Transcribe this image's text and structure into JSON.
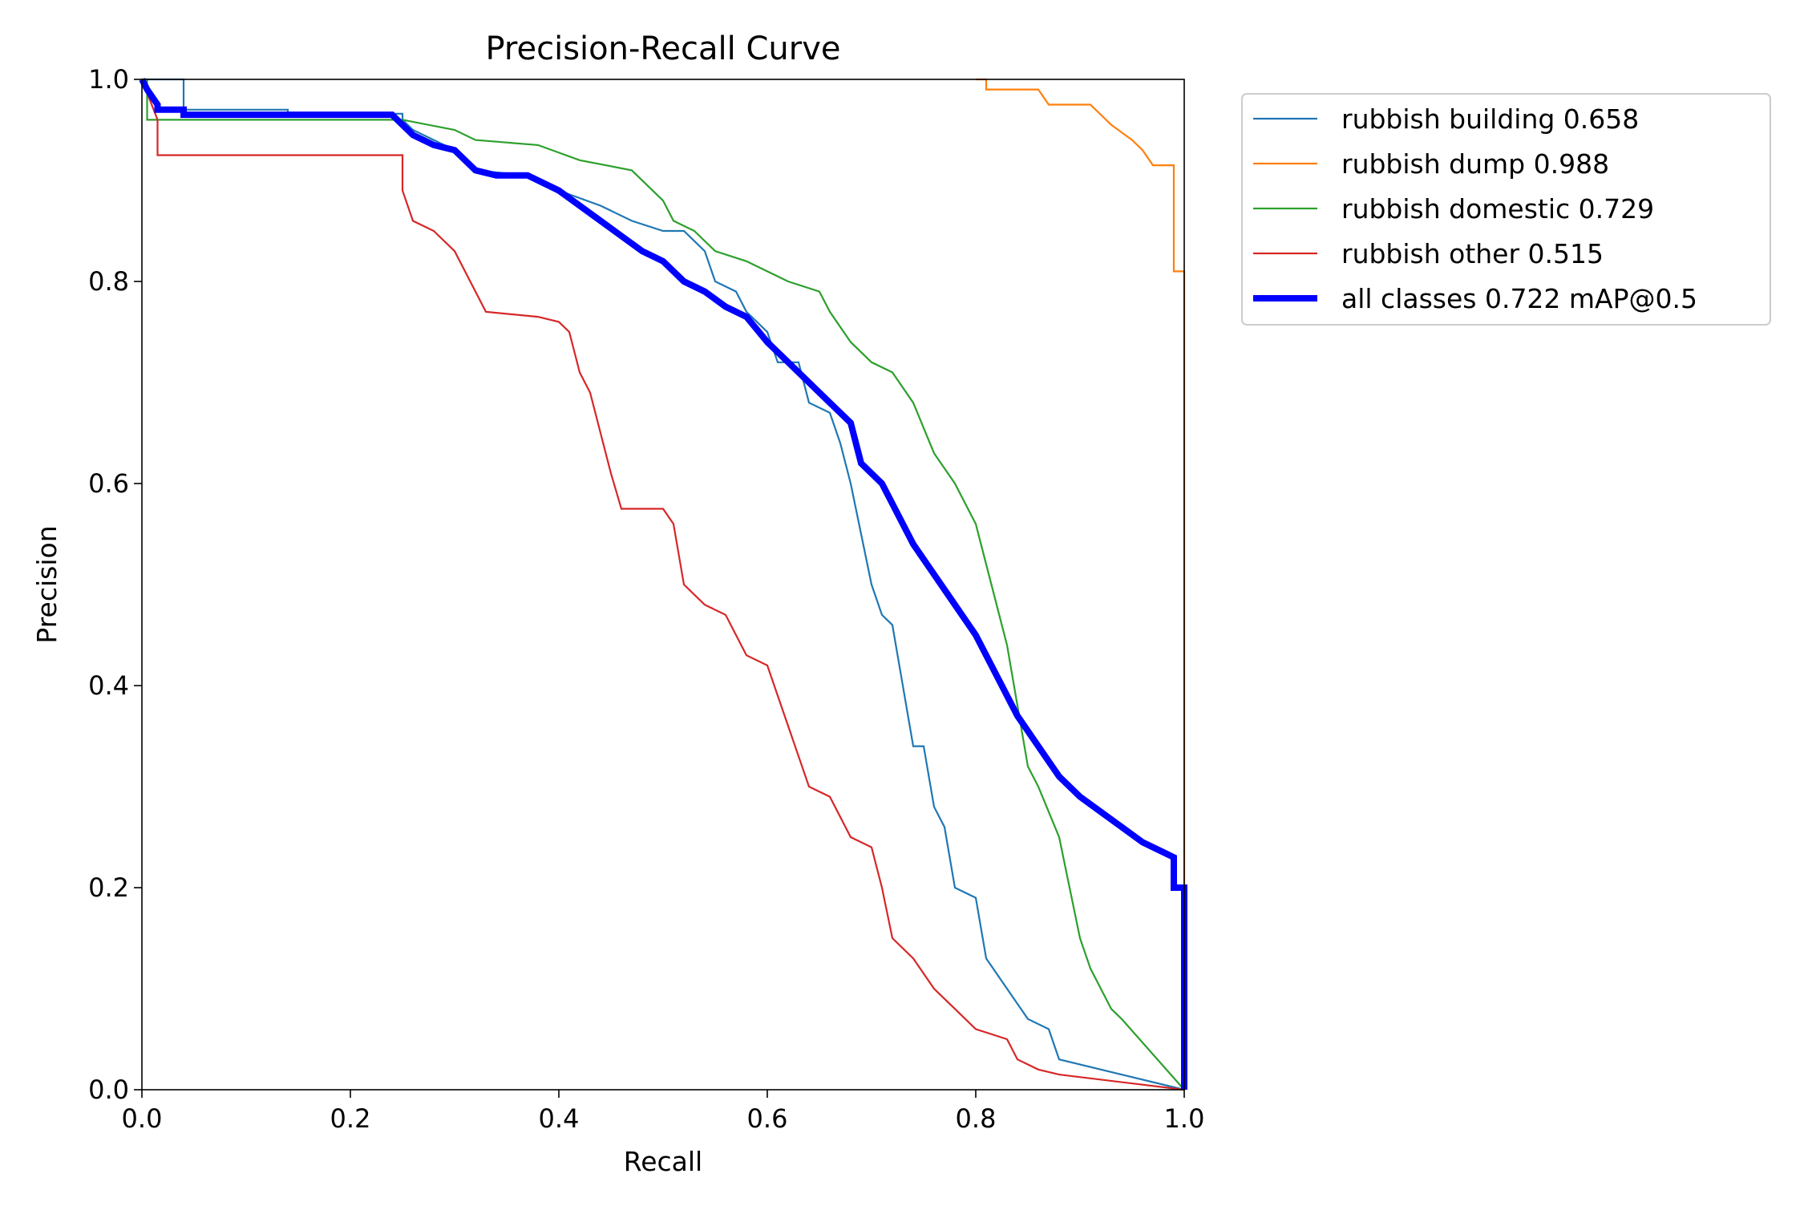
{
  "chart_data": {
    "type": "line",
    "title": "Precision-Recall Curve",
    "xlabel": "Recall",
    "ylabel": "Precision",
    "xlim": [
      0,
      1
    ],
    "ylim": [
      0,
      1
    ],
    "x_ticks": [
      "0.0",
      "0.2",
      "0.4",
      "0.6",
      "0.8",
      "1.0"
    ],
    "y_ticks": [
      "0.0",
      "0.2",
      "0.4",
      "0.6",
      "0.8",
      "1.0"
    ],
    "grid": false,
    "legend_position": "outside-top-right",
    "series": [
      {
        "name": "rubbish building 0.658",
        "color": "#1f77b4",
        "weight": "thin",
        "points": [
          [
            0.0,
            1.0
          ],
          [
            0.04,
            1.0
          ],
          [
            0.04,
            0.97
          ],
          [
            0.14,
            0.97
          ],
          [
            0.14,
            0.966
          ],
          [
            0.25,
            0.966
          ],
          [
            0.25,
            0.96
          ],
          [
            0.26,
            0.95
          ],
          [
            0.3,
            0.93
          ],
          [
            0.32,
            0.91
          ],
          [
            0.37,
            0.905
          ],
          [
            0.4,
            0.89
          ],
          [
            0.44,
            0.875
          ],
          [
            0.47,
            0.86
          ],
          [
            0.5,
            0.85
          ],
          [
            0.52,
            0.85
          ],
          [
            0.54,
            0.83
          ],
          [
            0.55,
            0.8
          ],
          [
            0.57,
            0.79
          ],
          [
            0.58,
            0.77
          ],
          [
            0.6,
            0.75
          ],
          [
            0.61,
            0.72
          ],
          [
            0.63,
            0.72
          ],
          [
            0.64,
            0.68
          ],
          [
            0.66,
            0.67
          ],
          [
            0.67,
            0.64
          ],
          [
            0.68,
            0.6
          ],
          [
            0.69,
            0.55
          ],
          [
            0.7,
            0.5
          ],
          [
            0.71,
            0.47
          ],
          [
            0.72,
            0.46
          ],
          [
            0.73,
            0.4
          ],
          [
            0.74,
            0.34
          ],
          [
            0.75,
            0.34
          ],
          [
            0.76,
            0.28
          ],
          [
            0.77,
            0.26
          ],
          [
            0.78,
            0.2
          ],
          [
            0.8,
            0.19
          ],
          [
            0.81,
            0.13
          ],
          [
            0.83,
            0.1
          ],
          [
            0.85,
            0.07
          ],
          [
            0.87,
            0.06
          ],
          [
            0.88,
            0.03
          ],
          [
            1.0,
            0.0
          ]
        ]
      },
      {
        "name": "rubbish dump 0.988",
        "color": "#ff7f0e",
        "weight": "thin",
        "points": [
          [
            0.8,
            1.0
          ],
          [
            0.81,
            1.0
          ],
          [
            0.81,
            0.99
          ],
          [
            0.86,
            0.99
          ],
          [
            0.87,
            0.975
          ],
          [
            0.91,
            0.975
          ],
          [
            0.93,
            0.955
          ],
          [
            0.95,
            0.94
          ],
          [
            0.96,
            0.93
          ],
          [
            0.97,
            0.915
          ],
          [
            0.99,
            0.915
          ],
          [
            0.99,
            0.81
          ],
          [
            1.0,
            0.81
          ],
          [
            1.0,
            0.0
          ]
        ]
      },
      {
        "name": "rubbish domestic 0.729",
        "color": "#2ca02c",
        "weight": "thin",
        "points": [
          [
            0.0,
            1.0
          ],
          [
            0.005,
            1.0
          ],
          [
            0.005,
            0.96
          ],
          [
            0.25,
            0.96
          ],
          [
            0.3,
            0.95
          ],
          [
            0.32,
            0.94
          ],
          [
            0.38,
            0.935
          ],
          [
            0.42,
            0.92
          ],
          [
            0.47,
            0.91
          ],
          [
            0.5,
            0.88
          ],
          [
            0.51,
            0.86
          ],
          [
            0.53,
            0.85
          ],
          [
            0.55,
            0.83
          ],
          [
            0.58,
            0.82
          ],
          [
            0.6,
            0.81
          ],
          [
            0.62,
            0.8
          ],
          [
            0.65,
            0.79
          ],
          [
            0.66,
            0.77
          ],
          [
            0.68,
            0.74
          ],
          [
            0.7,
            0.72
          ],
          [
            0.72,
            0.71
          ],
          [
            0.74,
            0.68
          ],
          [
            0.76,
            0.63
          ],
          [
            0.78,
            0.6
          ],
          [
            0.8,
            0.56
          ],
          [
            0.81,
            0.52
          ],
          [
            0.82,
            0.48
          ],
          [
            0.83,
            0.44
          ],
          [
            0.84,
            0.38
          ],
          [
            0.85,
            0.32
          ],
          [
            0.86,
            0.3
          ],
          [
            0.88,
            0.25
          ],
          [
            0.89,
            0.2
          ],
          [
            0.9,
            0.15
          ],
          [
            0.91,
            0.12
          ],
          [
            0.93,
            0.08
          ],
          [
            0.94,
            0.07
          ],
          [
            1.0,
            0.0
          ]
        ]
      },
      {
        "name": "rubbish other 0.515",
        "color": "#d62728",
        "weight": "thin",
        "points": [
          [
            0.0,
            1.0
          ],
          [
            0.015,
            0.96
          ],
          [
            0.015,
            0.925
          ],
          [
            0.25,
            0.925
          ],
          [
            0.25,
            0.89
          ],
          [
            0.26,
            0.86
          ],
          [
            0.28,
            0.85
          ],
          [
            0.3,
            0.83
          ],
          [
            0.31,
            0.81
          ],
          [
            0.32,
            0.79
          ],
          [
            0.33,
            0.77
          ],
          [
            0.38,
            0.765
          ],
          [
            0.4,
            0.76
          ],
          [
            0.41,
            0.75
          ],
          [
            0.42,
            0.71
          ],
          [
            0.43,
            0.69
          ],
          [
            0.44,
            0.65
          ],
          [
            0.45,
            0.61
          ],
          [
            0.46,
            0.575
          ],
          [
            0.5,
            0.575
          ],
          [
            0.51,
            0.56
          ],
          [
            0.52,
            0.5
          ],
          [
            0.54,
            0.48
          ],
          [
            0.56,
            0.47
          ],
          [
            0.57,
            0.45
          ],
          [
            0.58,
            0.43
          ],
          [
            0.6,
            0.42
          ],
          [
            0.61,
            0.39
          ],
          [
            0.62,
            0.36
          ],
          [
            0.63,
            0.33
          ],
          [
            0.64,
            0.3
          ],
          [
            0.66,
            0.29
          ],
          [
            0.68,
            0.25
          ],
          [
            0.7,
            0.24
          ],
          [
            0.71,
            0.2
          ],
          [
            0.72,
            0.15
          ],
          [
            0.74,
            0.13
          ],
          [
            0.76,
            0.1
          ],
          [
            0.78,
            0.08
          ],
          [
            0.8,
            0.06
          ],
          [
            0.83,
            0.05
          ],
          [
            0.84,
            0.03
          ],
          [
            0.86,
            0.02
          ],
          [
            0.88,
            0.015
          ],
          [
            1.0,
            0.0
          ]
        ]
      },
      {
        "name": "all classes 0.722 mAP@0.5",
        "color": "#0000ff",
        "weight": "thick",
        "points": [
          [
            0.0,
            1.0
          ],
          [
            0.005,
            0.99
          ],
          [
            0.015,
            0.975
          ],
          [
            0.015,
            0.97
          ],
          [
            0.04,
            0.97
          ],
          [
            0.04,
            0.965
          ],
          [
            0.24,
            0.965
          ],
          [
            0.25,
            0.955
          ],
          [
            0.26,
            0.945
          ],
          [
            0.28,
            0.935
          ],
          [
            0.3,
            0.93
          ],
          [
            0.32,
            0.91
          ],
          [
            0.34,
            0.905
          ],
          [
            0.37,
            0.905
          ],
          [
            0.4,
            0.89
          ],
          [
            0.42,
            0.875
          ],
          [
            0.44,
            0.86
          ],
          [
            0.46,
            0.845
          ],
          [
            0.48,
            0.83
          ],
          [
            0.5,
            0.82
          ],
          [
            0.52,
            0.8
          ],
          [
            0.54,
            0.79
          ],
          [
            0.56,
            0.775
          ],
          [
            0.58,
            0.765
          ],
          [
            0.6,
            0.74
          ],
          [
            0.62,
            0.72
          ],
          [
            0.64,
            0.7
          ],
          [
            0.66,
            0.68
          ],
          [
            0.68,
            0.66
          ],
          [
            0.69,
            0.62
          ],
          [
            0.71,
            0.6
          ],
          [
            0.72,
            0.58
          ],
          [
            0.74,
            0.54
          ],
          [
            0.76,
            0.51
          ],
          [
            0.78,
            0.48
          ],
          [
            0.8,
            0.45
          ],
          [
            0.82,
            0.41
          ],
          [
            0.84,
            0.37
          ],
          [
            0.86,
            0.34
          ],
          [
            0.88,
            0.31
          ],
          [
            0.9,
            0.29
          ],
          [
            0.92,
            0.275
          ],
          [
            0.94,
            0.26
          ],
          [
            0.96,
            0.245
          ],
          [
            0.98,
            0.235
          ],
          [
            0.99,
            0.23
          ],
          [
            0.99,
            0.2
          ],
          [
            1.0,
            0.2
          ],
          [
            1.0,
            0.0
          ]
        ]
      }
    ]
  }
}
